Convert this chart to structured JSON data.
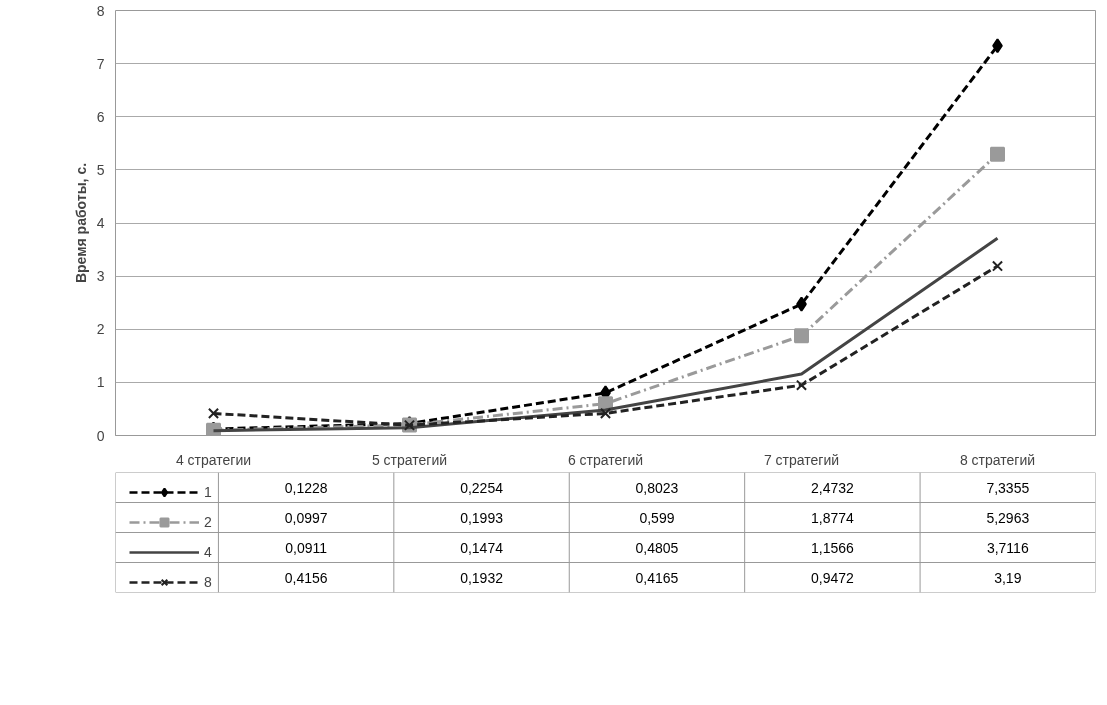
{
  "chart_data": {
    "type": "line",
    "ylabel": "Время работы, с.",
    "categories": [
      "4 стратегии",
      "5 стратегий",
      "6 стратегий",
      "7 стратегий",
      "8 стратегий"
    ],
    "series": [
      {
        "name": "1",
        "color": "#000000",
        "values": [
          0.1228,
          0.2254,
          0.8023,
          2.4732,
          7.3355
        ],
        "value_labels": [
          "0,1228",
          "0,2254",
          "0,8023",
          "2,4732",
          "7,3355"
        ],
        "marker": "diamond",
        "line_style": "dashed"
      },
      {
        "name": "2",
        "color": "#9a9a9a",
        "values": [
          0.0997,
          0.1993,
          0.599,
          1.8774,
          5.2963
        ],
        "value_labels": [
          "0,0997",
          "0,1993",
          "0,599",
          "1,8774",
          "5,2963"
        ],
        "marker": "square",
        "line_style": "dashdot"
      },
      {
        "name": "4",
        "color": "#444444",
        "values": [
          0.0911,
          0.1474,
          0.4805,
          1.1566,
          3.7116
        ],
        "value_labels": [
          "0,0911",
          "0,1474",
          "0,4805",
          "1,1566",
          "3,7116"
        ],
        "marker": "none",
        "line_style": "solid"
      },
      {
        "name": "8",
        "color": "#222222",
        "values": [
          0.4156,
          0.1932,
          0.4165,
          0.9472,
          3.19
        ],
        "value_labels": [
          "0,4156",
          "0,1932",
          "0,4165",
          "0,9472",
          "3,19"
        ],
        "marker": "cross",
        "line_style": "dashed"
      }
    ],
    "ylim": [
      0,
      8
    ],
    "yticks": [
      0,
      1,
      2,
      3,
      4,
      5,
      6,
      7,
      8
    ],
    "grid": "y",
    "legend": "bottom left"
  }
}
